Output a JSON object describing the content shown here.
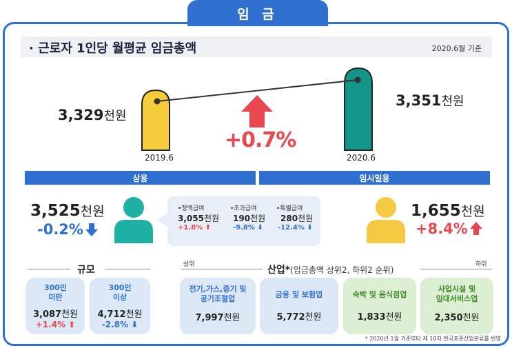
{
  "tab_title": "임 금",
  "title": "· 근로자 1인당 월평균 임금총액",
  "as_of": "2020.6월 기준",
  "headline": {
    "left_value": "3,329",
    "left_unit": "천원",
    "left_year": "2019.6",
    "right_value": "3,351",
    "right_unit": "천원",
    "right_year": "2020.6",
    "change": "+0.7%"
  },
  "sections": {
    "regular": "상용",
    "temporary": "임시일용"
  },
  "regular": {
    "value": "3,525",
    "unit": "천원",
    "change": "-0.2%",
    "breakdown": [
      {
        "label": "•정액급여",
        "value": "3,055",
        "unit": "천원",
        "change": "+1.8%",
        "dir": "up"
      },
      {
        "label": "•초과급여",
        "value": "190",
        "unit": "천원",
        "change": "-9.8%",
        "dir": "down"
      },
      {
        "label": "•특별급여",
        "value": "280",
        "unit": "천원",
        "change": "-12.4%",
        "dir": "down"
      }
    ]
  },
  "temporary": {
    "value": "1,655",
    "unit": "천원",
    "change": "+8.4%"
  },
  "scale": {
    "heading": "규모",
    "cards": [
      {
        "title1": "300인",
        "title2": "미만",
        "value": "3,087",
        "unit": "천원",
        "change": "+1.4%",
        "dir": "up"
      },
      {
        "title1": "300인",
        "title2": "이상",
        "value": "4,712",
        "unit": "천원",
        "change": "-2.8%",
        "dir": "down"
      }
    ]
  },
  "industry": {
    "heading": "산업*",
    "heading_note": "(임금총액 상위2, 하위2 순위)",
    "top_label": "상위",
    "bottom_label": "하위",
    "cards": [
      {
        "title1": "전기,가스,증기 및",
        "title2": "공기조절업",
        "value": "7,997",
        "unit": "천원",
        "color": "blue"
      },
      {
        "title1": "금융 및 보험업",
        "title2": "",
        "value": "5,772",
        "unit": "천원",
        "color": "blue"
      },
      {
        "title1": "숙박 및 음식점업",
        "title2": "",
        "value": "1,833",
        "unit": "천원",
        "color": "green"
      },
      {
        "title1": "사업시설 및",
        "title2": "임대서비스업",
        "value": "2,350",
        "unit": "천원",
        "color": "green"
      }
    ]
  },
  "footnote": "* 2020년 1월 기준부터 제 10차 한국표준산업분류를 반영",
  "colors": {
    "primary_blue": "#2f6fd0",
    "red": "#e8474d",
    "yellow": "#f5cc3a",
    "teal": "#14958a",
    "person_teal": "#1fb0a4",
    "person_yellow": "#f5c842"
  }
}
